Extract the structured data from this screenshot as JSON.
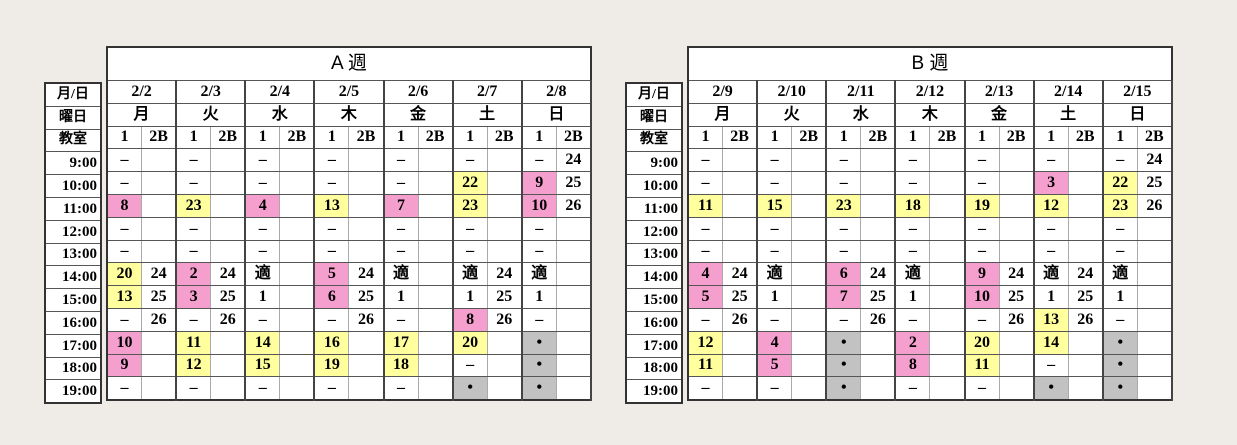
{
  "row_labels": {
    "date": "月/日",
    "weekday": "曜日",
    "room": "教室"
  },
  "colors": {
    "P": "#f59fcf",
    "Y": "#ffff9e",
    "G": "#c2c2c2"
  },
  "weeks": [
    {
      "title": "A 週",
      "dates": [
        "2/2",
        "2/3",
        "2/4",
        "2/5",
        "2/6",
        "2/7",
        "2/8"
      ],
      "weekdays": [
        "月",
        "火",
        "水",
        "木",
        "金",
        "土",
        "日"
      ],
      "rooms": [
        "1",
        "2B"
      ],
      "rows": [
        {
          "time": "9:00",
          "cells": [
            "–",
            "",
            "–",
            "",
            "–",
            "",
            "–",
            "",
            "–",
            "",
            "–",
            "",
            "–",
            "24"
          ],
          "marks": ".............."
        },
        {
          "time": "10:00",
          "cells": [
            "–",
            "",
            "–",
            "",
            "–",
            "",
            "–",
            "",
            "–",
            "",
            "22",
            "",
            "9",
            "25"
          ],
          "marks": "..........Y.P."
        },
        {
          "time": "11:00",
          "cells": [
            "8",
            "",
            "23",
            "",
            "4",
            "",
            "13",
            "",
            "7",
            "",
            "23",
            "",
            "10",
            "26"
          ],
          "marks": "P.Y.P.Y.P.Y.P."
        },
        {
          "time": "12:00",
          "cells": [
            "–",
            "",
            "–",
            "",
            "–",
            "",
            "–",
            "",
            "–",
            "",
            "–",
            "",
            "–",
            ""
          ],
          "marks": ".............."
        },
        {
          "time": "13:00",
          "cells": [
            "–",
            "",
            "–",
            "",
            "–",
            "",
            "–",
            "",
            "–",
            "",
            "–",
            "",
            "–",
            ""
          ],
          "marks": ".............."
        },
        {
          "time": "14:00",
          "cells": [
            "20",
            "24",
            "2",
            "24",
            "適",
            "",
            "5",
            "24",
            "適",
            "",
            "適",
            "24",
            "適",
            ""
          ],
          "marks": "Y.P...P......."
        },
        {
          "time": "15:00",
          "cells": [
            "13",
            "25",
            "3",
            "25",
            "1",
            "",
            "6",
            "25",
            "1",
            "",
            "1",
            "25",
            "1",
            ""
          ],
          "marks": "Y.P...P......."
        },
        {
          "time": "16:00",
          "cells": [
            "–",
            "26",
            "–",
            "26",
            "–",
            "",
            "–",
            "26",
            "–",
            "",
            "8",
            "26",
            "–",
            ""
          ],
          "marks": "..........P..."
        },
        {
          "time": "17:00",
          "cells": [
            "10",
            "",
            "11",
            "",
            "14",
            "",
            "16",
            "",
            "17",
            "",
            "20",
            "",
            "•",
            ""
          ],
          "marks": "P.Y.Y.Y.Y.Y.G."
        },
        {
          "time": "18:00",
          "cells": [
            "9",
            "",
            "12",
            "",
            "15",
            "",
            "19",
            "",
            "18",
            "",
            "–",
            "",
            "•",
            ""
          ],
          "marks": "P.Y.Y.Y.Y...G."
        },
        {
          "time": "19:00",
          "cells": [
            "–",
            "",
            "–",
            "",
            "–",
            "",
            "–",
            "",
            "–",
            "",
            "•",
            "",
            "•",
            ""
          ],
          "marks": "..........G.G."
        }
      ]
    },
    {
      "title": "B 週",
      "dates": [
        "2/9",
        "2/10",
        "2/11",
        "2/12",
        "2/13",
        "2/14",
        "2/15"
      ],
      "weekdays": [
        "月",
        "火",
        "水",
        "木",
        "金",
        "土",
        "日"
      ],
      "rooms": [
        "1",
        "2B"
      ],
      "rows": [
        {
          "time": "9:00",
          "cells": [
            "–",
            "",
            "–",
            "",
            "–",
            "",
            "–",
            "",
            "–",
            "",
            "–",
            "",
            "–",
            "24"
          ],
          "marks": ".............."
        },
        {
          "time": "10:00",
          "cells": [
            "–",
            "",
            "–",
            "",
            "–",
            "",
            "–",
            "",
            "–",
            "",
            "3",
            "",
            "22",
            "25"
          ],
          "marks": "..........P.Y."
        },
        {
          "time": "11:00",
          "cells": [
            "11",
            "",
            "15",
            "",
            "23",
            "",
            "18",
            "",
            "19",
            "",
            "12",
            "",
            "23",
            "26"
          ],
          "marks": "Y.Y.Y.Y.Y.Y.Y."
        },
        {
          "time": "12:00",
          "cells": [
            "–",
            "",
            "–",
            "",
            "–",
            "",
            "–",
            "",
            "–",
            "",
            "–",
            "",
            "–",
            ""
          ],
          "marks": ".............."
        },
        {
          "time": "13:00",
          "cells": [
            "–",
            "",
            "–",
            "",
            "–",
            "",
            "–",
            "",
            "–",
            "",
            "–",
            "",
            "–",
            ""
          ],
          "marks": ".............."
        },
        {
          "time": "14:00",
          "cells": [
            "4",
            "24",
            "適",
            "",
            "6",
            "24",
            "適",
            "",
            "9",
            "24",
            "適",
            "24",
            "適",
            ""
          ],
          "marks": "P...P...P....."
        },
        {
          "time": "15:00",
          "cells": [
            "5",
            "25",
            "1",
            "",
            "7",
            "25",
            "1",
            "",
            "10",
            "25",
            "1",
            "25",
            "1",
            ""
          ],
          "marks": "P...P...P....."
        },
        {
          "time": "16:00",
          "cells": [
            "–",
            "26",
            "–",
            "",
            "–",
            "26",
            "–",
            "",
            "–",
            "26",
            "13",
            "26",
            "–",
            ""
          ],
          "marks": "..........Y..."
        },
        {
          "time": "17:00",
          "cells": [
            "12",
            "",
            "4",
            "",
            "•",
            "",
            "2",
            "",
            "20",
            "",
            "14",
            "",
            "•",
            ""
          ],
          "marks": "Y.P.G.P.Y.Y.G."
        },
        {
          "time": "18:00",
          "cells": [
            "11",
            "",
            "5",
            "",
            "•",
            "",
            "8",
            "",
            "11",
            "",
            "–",
            "",
            "•",
            ""
          ],
          "marks": "Y.P.G.P.Y...G."
        },
        {
          "time": "19:00",
          "cells": [
            "–",
            "",
            "–",
            "",
            "•",
            "",
            "–",
            "",
            "–",
            "",
            "•",
            "",
            "•",
            ""
          ],
          "marks": "....G.....G.G."
        }
      ]
    }
  ]
}
